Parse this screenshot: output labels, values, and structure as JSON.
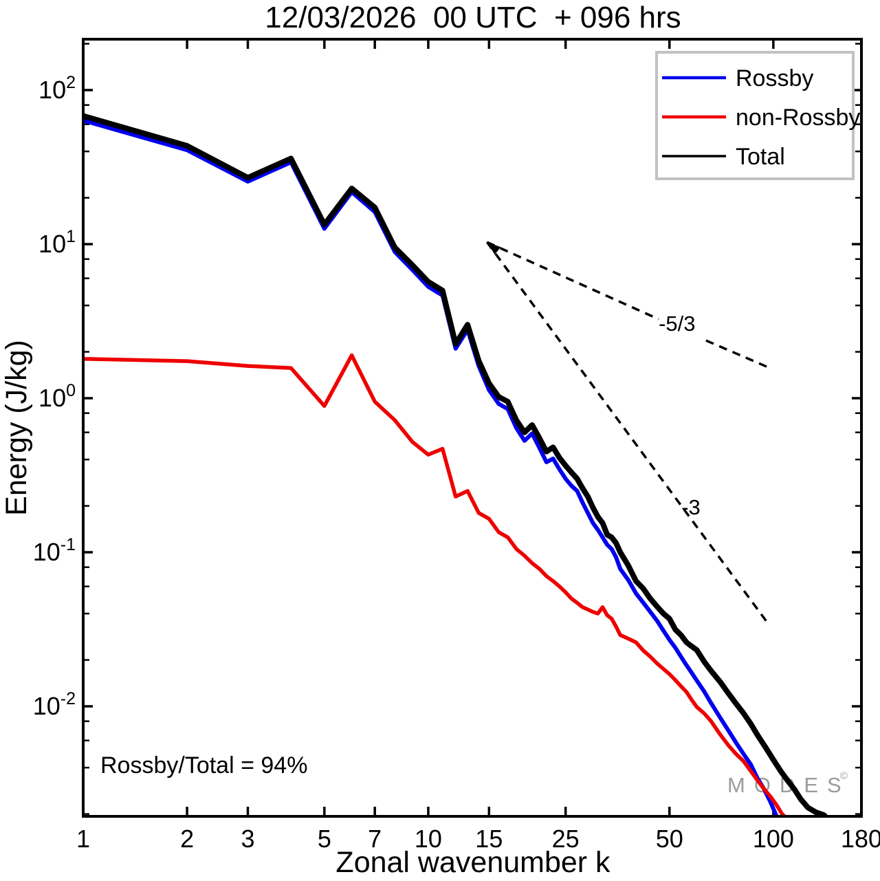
{
  "title": "12/03/2026  00 UTC  + 096 hrs",
  "annotation": "Rossby/Total = 94%",
  "watermark": {
    "text": "MODES",
    "copyright": "©",
    "color": "#9b9b9b"
  },
  "legend": {
    "entries": [
      {
        "label": "Rossby",
        "color": "#0000ee"
      },
      {
        "label": "non-Rossby",
        "color": "#ee0000"
      },
      {
        "label": "Total",
        "color": "#000000"
      }
    ]
  },
  "chart_data": {
    "type": "line",
    "title": "12/03/2026  00 UTC  + 096 hrs",
    "xlabel": "Zonal wavenumber k",
    "ylabel": "Energy (J/kg)",
    "x_scale": "log",
    "y_scale": "log",
    "xlim": [
      1,
      180
    ],
    "ylim": [
      0.0019,
      214
    ],
    "grid": false,
    "legend_position": "upper-right",
    "x_ticks": [
      {
        "v": 1,
        "label": "1"
      },
      {
        "v": 2,
        "label": "2"
      },
      {
        "v": 3,
        "label": "3"
      },
      {
        "v": 5,
        "label": "5"
      },
      {
        "v": 7,
        "label": "7"
      },
      {
        "v": 10,
        "label": "10"
      },
      {
        "v": 15,
        "label": "15"
      },
      {
        "v": 25,
        "label": "25"
      },
      {
        "v": 50,
        "label": "50"
      },
      {
        "v": 100,
        "label": "100"
      },
      {
        "v": 180,
        "label": "180"
      }
    ],
    "y_major_exponents": [
      2,
      1,
      0,
      -1,
      -2
    ],
    "y_minor_mantissas": [
      2,
      4,
      6,
      8
    ],
    "series": [
      {
        "name": "Rossby",
        "color": "#0000ee",
        "width": 6,
        "points": [
          [
            1,
            63.5
          ],
          [
            2,
            40.8
          ],
          [
            3,
            25.5
          ],
          [
            4,
            34
          ],
          [
            5,
            12.6
          ],
          [
            6,
            21.8
          ],
          [
            7,
            16.2
          ],
          [
            8,
            8.9
          ],
          [
            9,
            6.8
          ],
          [
            10,
            5.3
          ],
          [
            11,
            4.65
          ],
          [
            12,
            2.1
          ],
          [
            13,
            2.78
          ],
          [
            14,
            1.62
          ],
          [
            15,
            1.13
          ],
          [
            16,
            0.92
          ],
          [
            17,
            0.85
          ],
          [
            18,
            0.64
          ],
          [
            19,
            0.53
          ],
          [
            20,
            0.59
          ],
          [
            21,
            0.475
          ],
          [
            22,
            0.385
          ],
          [
            23,
            0.405
          ],
          [
            24,
            0.345
          ],
          [
            25,
            0.3
          ],
          [
            26,
            0.27
          ],
          [
            27,
            0.25
          ],
          [
            28,
            0.21
          ],
          [
            29,
            0.18
          ],
          [
            30,
            0.155
          ],
          [
            31,
            0.14
          ],
          [
            32,
            0.125
          ],
          [
            33,
            0.112
          ],
          [
            34,
            0.105
          ],
          [
            35,
            0.093
          ],
          [
            36,
            0.078
          ],
          [
            38,
            0.066
          ],
          [
            40,
            0.054
          ],
          [
            42,
            0.047
          ],
          [
            44,
            0.041
          ],
          [
            46,
            0.036
          ],
          [
            48,
            0.031
          ],
          [
            50,
            0.027
          ],
          [
            52,
            0.024
          ],
          [
            54,
            0.021
          ],
          [
            56,
            0.0185
          ],
          [
            58,
            0.0165
          ],
          [
            60,
            0.0147
          ],
          [
            63,
            0.0125
          ],
          [
            66,
            0.0105
          ],
          [
            70,
            0.0085
          ],
          [
            74,
            0.007
          ],
          [
            78,
            0.0058
          ],
          [
            82,
            0.0049
          ],
          [
            86,
            0.0042
          ],
          [
            90,
            0.0034
          ],
          [
            94,
            0.0029
          ],
          [
            98,
            0.0024
          ],
          [
            102,
            0.00195
          ],
          [
            107,
            0.0016
          ]
        ]
      },
      {
        "name": "non-Rossby",
        "color": "#ee0000",
        "width": 5.5,
        "points": [
          [
            1,
            1.8
          ],
          [
            2,
            1.74
          ],
          [
            3,
            1.62
          ],
          [
            4,
            1.57
          ],
          [
            5,
            0.89
          ],
          [
            6,
            1.9
          ],
          [
            7,
            0.95
          ],
          [
            8,
            0.72
          ],
          [
            9,
            0.52
          ],
          [
            10,
            0.43
          ],
          [
            11,
            0.47
          ],
          [
            12,
            0.23
          ],
          [
            13,
            0.25
          ],
          [
            14,
            0.18
          ],
          [
            15,
            0.165
          ],
          [
            16,
            0.135
          ],
          [
            17,
            0.125
          ],
          [
            18,
            0.105
          ],
          [
            19,
            0.095
          ],
          [
            20,
            0.085
          ],
          [
            21,
            0.078
          ],
          [
            22,
            0.07
          ],
          [
            23,
            0.065
          ],
          [
            24,
            0.06
          ],
          [
            25,
            0.055
          ],
          [
            26,
            0.05
          ],
          [
            27,
            0.047
          ],
          [
            28,
            0.044
          ],
          [
            29,
            0.0425
          ],
          [
            30,
            0.041
          ],
          [
            31,
            0.04
          ],
          [
            32,
            0.044
          ],
          [
            33,
            0.039
          ],
          [
            34,
            0.037
          ],
          [
            35,
            0.033
          ],
          [
            36,
            0.029
          ],
          [
            38,
            0.0275
          ],
          [
            40,
            0.026
          ],
          [
            42,
            0.023
          ],
          [
            44,
            0.021
          ],
          [
            46,
            0.019
          ],
          [
            48,
            0.0175
          ],
          [
            50,
            0.0162
          ],
          [
            52,
            0.0148
          ],
          [
            54,
            0.0135
          ],
          [
            56,
            0.0124
          ],
          [
            58,
            0.011
          ],
          [
            60,
            0.0099
          ],
          [
            63,
            0.009
          ],
          [
            66,
            0.008
          ],
          [
            70,
            0.0066
          ],
          [
            74,
            0.0056
          ],
          [
            78,
            0.0049
          ],
          [
            82,
            0.0044
          ],
          [
            86,
            0.0038
          ],
          [
            90,
            0.0033
          ],
          [
            94,
            0.0029
          ],
          [
            98,
            0.0026
          ],
          [
            102,
            0.0023
          ],
          [
            106,
            0.002
          ],
          [
            110,
            0.00185
          ],
          [
            115,
            0.0017
          ]
        ]
      },
      {
        "name": "Total",
        "color": "#000000",
        "width": 8,
        "points": [
          [
            1,
            68
          ],
          [
            2,
            43.5
          ],
          [
            3,
            27
          ],
          [
            4,
            36
          ],
          [
            5,
            13.4
          ],
          [
            6,
            23
          ],
          [
            7,
            17.3
          ],
          [
            8,
            9.5
          ],
          [
            9,
            7.3
          ],
          [
            10,
            5.7
          ],
          [
            11,
            5.0
          ],
          [
            12,
            2.25
          ],
          [
            13,
            3.0
          ],
          [
            14,
            1.75
          ],
          [
            15,
            1.25
          ],
          [
            16,
            1.02
          ],
          [
            17,
            0.95
          ],
          [
            18,
            0.72
          ],
          [
            19,
            0.6
          ],
          [
            20,
            0.67
          ],
          [
            21,
            0.55
          ],
          [
            22,
            0.45
          ],
          [
            23,
            0.48
          ],
          [
            24,
            0.41
          ],
          [
            25,
            0.365
          ],
          [
            26,
            0.33
          ],
          [
            27,
            0.3
          ],
          [
            28,
            0.26
          ],
          [
            29,
            0.23
          ],
          [
            30,
            0.195
          ],
          [
            31,
            0.17
          ],
          [
            32,
            0.155
          ],
          [
            33,
            0.13
          ],
          [
            34,
            0.125
          ],
          [
            35,
            0.115
          ],
          [
            36,
            0.1
          ],
          [
            38,
            0.082
          ],
          [
            40,
            0.065
          ],
          [
            42,
            0.058
          ],
          [
            44,
            0.05
          ],
          [
            46,
            0.0445
          ],
          [
            48,
            0.04
          ],
          [
            50,
            0.037
          ],
          [
            52,
            0.0315
          ],
          [
            54,
            0.029
          ],
          [
            56,
            0.026
          ],
          [
            58,
            0.0245
          ],
          [
            60,
            0.0232
          ],
          [
            63,
            0.0195
          ],
          [
            66,
            0.017
          ],
          [
            70,
            0.0145
          ],
          [
            74,
            0.0122
          ],
          [
            78,
            0.0104
          ],
          [
            82,
            0.009
          ],
          [
            86,
            0.0077
          ],
          [
            90,
            0.0065
          ],
          [
            95,
            0.0054
          ],
          [
            100,
            0.0045
          ],
          [
            105,
            0.0038
          ],
          [
            110,
            0.0033
          ],
          [
            115,
            0.0029
          ],
          [
            120,
            0.0025
          ],
          [
            126,
            0.0022
          ],
          [
            133,
            0.00205
          ],
          [
            140,
            0.00197
          ],
          [
            150,
            0.0017
          ]
        ]
      }
    ],
    "ref_lines": [
      {
        "label": "-5/3",
        "segments": [
          [
            [
              14.8,
              10.3
            ],
            [
              46.5,
              3.26
            ]
          ],
          [
            [
              63.8,
              2.37
            ],
            [
              99,
              1.55
            ]
          ]
        ],
        "label_at": [
          52.6,
          3.07
        ]
      },
      {
        "label": "-3",
        "segments": [
          [
            [
              14.8,
              10.3
            ],
            [
              96.6,
              0.0344
            ]
          ]
        ],
        "label_at": [
          57.7,
          0.197
        ]
      }
    ],
    "arrow_apex": [
      14.8,
      10.3
    ]
  }
}
